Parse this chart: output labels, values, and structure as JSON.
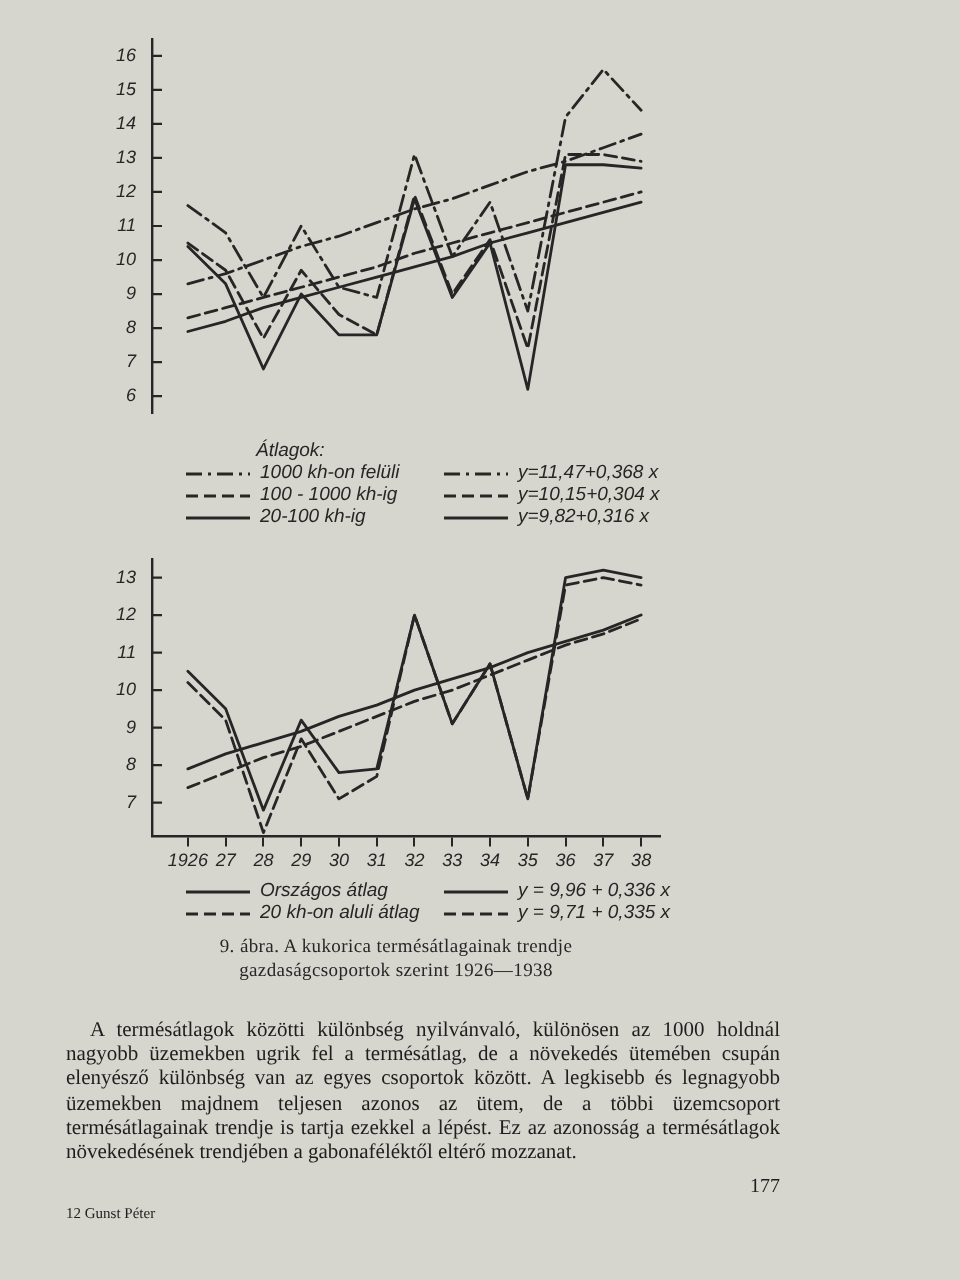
{
  "chart_data": [
    {
      "type": "line",
      "categories": [
        "1926",
        "27",
        "28",
        "29",
        "30",
        "31",
        "32",
        "33",
        "34",
        "35",
        "36",
        "37",
        "38"
      ],
      "ylim": [
        5.5,
        16.5
      ],
      "yticks": [
        6,
        7,
        8,
        9,
        10,
        11,
        12,
        13,
        14,
        15,
        16
      ],
      "tick_labels": "y",
      "legend": "bottom",
      "legend_title": "Átlagok:",
      "series": [
        {
          "name": "1000 kh-on felüli",
          "color": "#262626",
          "line_style": "dashdot",
          "values": [
            11.6,
            10.8,
            8.9,
            11.0,
            9.2,
            8.9,
            13.1,
            10.1,
            11.7,
            8.5,
            14.2,
            15.6,
            14.4
          ]
        },
        {
          "name": "100 - 1000 kh-ig",
          "color": "#262626",
          "line_style": "dashed",
          "values": [
            10.5,
            9.7,
            7.7,
            9.7,
            8.4,
            7.8,
            11.9,
            9.0,
            10.6,
            7.4,
            13.1,
            13.1,
            12.9
          ]
        },
        {
          "name": "20-100 kh-ig",
          "color": "#262626",
          "line_style": "solid",
          "values": [
            10.4,
            9.3,
            6.8,
            9.0,
            7.8,
            7.8,
            11.8,
            8.9,
            10.5,
            6.2,
            12.8,
            12.8,
            12.7
          ]
        },
        {
          "name": "y=11,47+0,368 x",
          "type": "line",
          "color": "#262626",
          "line_style": "dashdot",
          "values": [
            9.3,
            9.6,
            10.0,
            10.4,
            10.7,
            11.1,
            11.5,
            11.8,
            12.2,
            12.6,
            12.9,
            13.3,
            13.7
          ]
        },
        {
          "name": "y=10,15+0,304 x",
          "type": "line",
          "color": "#262626",
          "line_style": "dashed",
          "values": [
            8.3,
            8.6,
            8.9,
            9.2,
            9.5,
            9.8,
            10.2,
            10.5,
            10.8,
            11.1,
            11.4,
            11.7,
            12.0
          ]
        },
        {
          "name": "y=9,82+0,316 x",
          "type": "line",
          "color": "#262626",
          "line_style": "solid",
          "values": [
            7.9,
            8.2,
            8.6,
            8.9,
            9.2,
            9.5,
            9.8,
            10.1,
            10.5,
            10.8,
            11.1,
            11.4,
            11.7
          ]
        }
      ]
    },
    {
      "type": "line",
      "categories": [
        "1926",
        "27",
        "28",
        "29",
        "30",
        "31",
        "32",
        "33",
        "34",
        "35",
        "36",
        "37",
        "38"
      ],
      "ylim": [
        6.1,
        13.5
      ],
      "yticks": [
        7,
        8,
        9,
        10,
        11,
        12,
        13
      ],
      "legend": "bottom",
      "series": [
        {
          "name": "Országos átlag",
          "color": "#262626",
          "line_style": "solid",
          "values": [
            10.5,
            9.5,
            6.8,
            9.2,
            7.8,
            7.9,
            12.0,
            9.1,
            10.7,
            7.1,
            13.0,
            13.2,
            13.0
          ]
        },
        {
          "name": "20 kh-on aluli átlag",
          "color": "#262626",
          "line_style": "dashed",
          "values": [
            10.2,
            9.2,
            6.2,
            8.7,
            7.1,
            7.7,
            12.0,
            9.1,
            10.7,
            7.1,
            12.8,
            13.0,
            12.8
          ]
        },
        {
          "name": "y = 9,96 + 0,336 x",
          "type": "line",
          "color": "#262626",
          "line_style": "solid",
          "values": [
            7.9,
            8.3,
            8.6,
            8.9,
            9.3,
            9.6,
            10.0,
            10.3,
            10.6,
            11.0,
            11.3,
            11.6,
            12.0
          ]
        },
        {
          "name": "y = 9,71 + 0,335 x",
          "type": "line",
          "color": "#262626",
          "line_style": "dashed",
          "values": [
            7.4,
            7.8,
            8.2,
            8.5,
            8.9,
            9.3,
            9.7,
            10.0,
            10.4,
            10.8,
            11.2,
            11.5,
            11.9
          ]
        }
      ],
      "annotations": [
        "9. ábra. A kukorica termésátlagainak trendje gazdaságcsoportok szerint 1926—1938"
      ]
    },
    {
      "type": "other",
      "annotations": [
        "A termésátlagok közötti különbség nyilvánvaló, különösen az 1000 holdnál nagyobb üzemekben ugrik fel a termésátlag, de a növekedés ütemében csupán elenyésző különbség van az egyes csoportok között. A legkisebb és legnagyobb üzemekben majdnem teljesen azonos az ütem, de a többi üzemcsoport termésátlagainak trendje is tartja ezekkel a lépést. Ez az azonosság a termésátlagok növekedésének trendjében a gabonaféléktől eltérő mozzanat.",
        "12 Gunst Péter",
        "177"
      ]
    }
  ]
}
